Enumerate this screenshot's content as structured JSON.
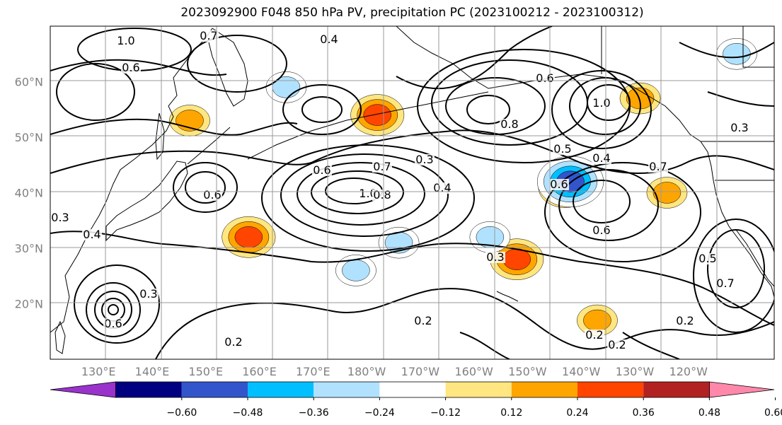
{
  "title": "2023092900 F048 850 hPa PV, precipitation PC (2023100212 - 2023100312)",
  "map": {
    "projection": "PlateCarree",
    "lon_range": [
      121,
      256
    ],
    "lat_range": [
      10,
      70
    ],
    "gridlines": true,
    "coastlines": true,
    "lat_ticks": [
      "60°N",
      "50°N",
      "40°N",
      "30°N",
      "20°N"
    ],
    "lon_ticks": [
      "130°E",
      "140°E",
      "150°E",
      "160°E",
      "170°E",
      "180°W",
      "170°W",
      "160°W",
      "150°W",
      "140°W",
      "130°W",
      "120°W"
    ]
  },
  "contour_labels": [
    "1.0",
    "0.7",
    "0.4",
    "0.3",
    "0.6",
    "0.8",
    "0.6",
    "0.5",
    "0.4",
    "0.6",
    "0.7",
    "0.6",
    "0.3",
    "0.4",
    "0.6",
    "0.3",
    "0.2",
    "0.2",
    "0.3",
    "0.2",
    "0.2",
    "0.5",
    "0.7",
    "0.6",
    "0.8",
    "1.0",
    "1.0",
    "0.6",
    "0.4",
    "0.7",
    "0.2",
    "0.3"
  ],
  "colorbar": {
    "extend": "both",
    "colors": [
      "#9933cc",
      "#000080",
      "#3355cc",
      "#00bfff",
      "#b0e2ff",
      "#ffffff",
      "#ffe680",
      "#ffa500",
      "#ff4500",
      "#b22222",
      "#ff88aa"
    ],
    "tick_labels": [
      "−0.60",
      "−0.48",
      "−0.36",
      "−0.24",
      "−0.12",
      "0.12",
      "0.24",
      "0.36",
      "0.48",
      "0.60"
    ]
  },
  "precip_anomalies": [
    {
      "sign": "positive",
      "lon": 217,
      "lat": 41,
      "value": 0.45
    },
    {
      "sign": "positive",
      "lon": 182,
      "lat": 54,
      "value": 0.4
    },
    {
      "sign": "positive",
      "lon": 147,
      "lat": 53,
      "value": 0.3
    },
    {
      "sign": "positive",
      "lon": 158,
      "lat": 32,
      "value": 0.38
    },
    {
      "sign": "positive",
      "lon": 208,
      "lat": 28,
      "value": 0.4
    },
    {
      "sign": "positive",
      "lon": 231,
      "lat": 57,
      "value": 0.3
    },
    {
      "sign": "positive",
      "lon": 236,
      "lat": 40,
      "value": 0.28
    },
    {
      "sign": "positive",
      "lon": 223,
      "lat": 17,
      "value": 0.25
    },
    {
      "sign": "negative",
      "lon": 218,
      "lat": 42,
      "value": -0.5
    },
    {
      "sign": "negative",
      "lon": 165,
      "lat": 59,
      "value": -0.35
    },
    {
      "sign": "negative",
      "lon": 203,
      "lat": 32,
      "value": -0.25
    },
    {
      "sign": "negative",
      "lon": 178,
      "lat": 26,
      "value": -0.25
    },
    {
      "sign": "negative",
      "lon": 249,
      "lat": 65,
      "value": -0.3
    },
    {
      "sign": "negative",
      "lon": 186,
      "lat": 31,
      "value": -0.25
    }
  ]
}
